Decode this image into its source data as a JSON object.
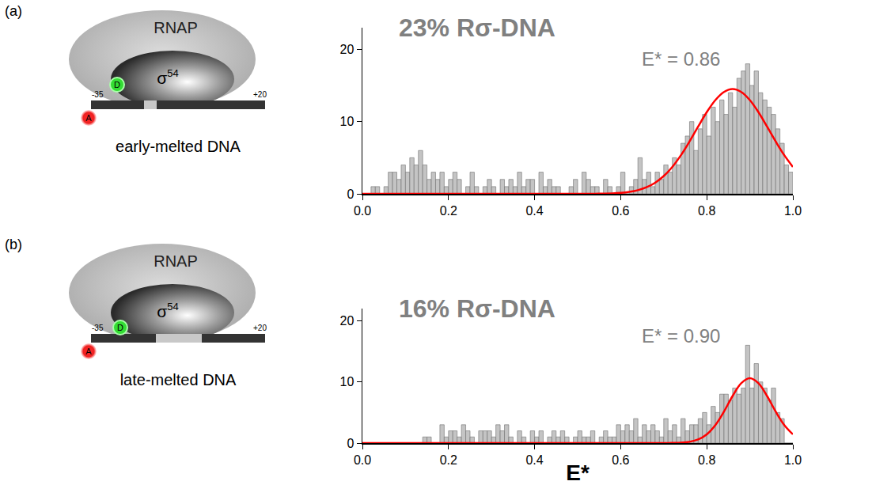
{
  "chart_data": [
    {
      "type": "histogram",
      "panel": "(a)",
      "title": "23% Rσ-DNA",
      "annotations": [
        "E* = 0.86"
      ],
      "bins": [
        0,
        0.01,
        0.02,
        0.03,
        0.04,
        0.05,
        0.06,
        0.07,
        0.08,
        0.09,
        0.1,
        0.11,
        0.12,
        0.13,
        0.14,
        0.15,
        0.16,
        0.17,
        0.18,
        0.19,
        0.2,
        0.21,
        0.22,
        0.23,
        0.24,
        0.25,
        0.26,
        0.27,
        0.28,
        0.29,
        0.3,
        0.31,
        0.32,
        0.33,
        0.34,
        0.35,
        0.36,
        0.37,
        0.38,
        0.39,
        0.4,
        0.41,
        0.42,
        0.43,
        0.44,
        0.45,
        0.46,
        0.47,
        0.48,
        0.49,
        0.5,
        0.51,
        0.52,
        0.53,
        0.54,
        0.55,
        0.56,
        0.57,
        0.58,
        0.59,
        0.6,
        0.61,
        0.62,
        0.63,
        0.64,
        0.65,
        0.66,
        0.67,
        0.68,
        0.69,
        0.7,
        0.71,
        0.72,
        0.73,
        0.74,
        0.75,
        0.76,
        0.77,
        0.78,
        0.79,
        0.8,
        0.81,
        0.82,
        0.83,
        0.84,
        0.85,
        0.86,
        0.87,
        0.88,
        0.89,
        0.9,
        0.91,
        0.92,
        0.93,
        0.94,
        0.95,
        0.96,
        0.97,
        0.98,
        0.99,
        1
      ],
      "values": [
        0,
        0,
        1,
        1,
        0,
        1,
        3,
        3,
        2,
        4,
        3,
        5,
        4,
        6,
        4,
        2,
        3,
        2,
        3,
        1,
        2,
        3,
        2,
        0,
        1,
        3,
        1,
        0,
        1,
        2,
        1,
        0,
        2,
        1,
        2,
        1,
        3,
        1,
        2,
        2,
        0,
        3,
        1,
        2,
        1,
        1,
        0,
        0,
        1,
        2,
        0,
        3,
        2,
        1,
        1,
        0,
        2,
        1,
        0,
        1,
        3,
        0,
        1,
        2,
        5,
        2,
        3,
        1,
        3,
        2,
        4,
        3,
        5,
        4,
        7,
        8,
        10,
        6,
        9,
        11,
        8,
        12,
        10,
        13,
        11,
        14,
        12,
        16,
        17,
        18,
        15,
        17,
        14,
        13,
        12,
        11,
        9,
        7,
        4,
        3
      ],
      "color": "#c4c4c4",
      "fit": {
        "type": "line",
        "color": "#ff0000",
        "x": [
          0,
          0.02,
          0.04,
          0.06,
          0.08,
          0.1,
          0.12,
          0.14,
          0.16,
          0.18,
          0.2,
          0.22,
          0.24,
          0.26,
          0.28,
          0.3,
          0.32,
          0.34,
          0.36,
          0.38,
          0.4,
          0.42,
          0.44,
          0.46,
          0.48,
          0.5,
          0.52,
          0.54,
          0.56,
          0.58,
          0.6,
          0.62,
          0.64,
          0.66,
          0.68,
          0.7,
          0.72,
          0.74,
          0.76,
          0.78,
          0.8,
          0.82,
          0.84,
          0.86,
          0.88,
          0.9,
          0.92,
          0.94,
          0.96,
          0.98,
          1
        ],
        "values": [
          0,
          0,
          0,
          0,
          0,
          0,
          0,
          0,
          0,
          0,
          0,
          0,
          0,
          0,
          0,
          0,
          0,
          0,
          0,
          0,
          0,
          0,
          0,
          0,
          0,
          0.0,
          0.01,
          0.01,
          0.03,
          0.06,
          0.13,
          0.27,
          0.51,
          0.91,
          1.54,
          2.46,
          3.73,
          5.35,
          7.26,
          9.32,
          11.31,
          12.98,
          14.1,
          14.5,
          14.1,
          12.98,
          11.31,
          9.32,
          7.26,
          5.35,
          3.73
        ]
      },
      "xlim": [
        0,
        1
      ],
      "xticks": [
        {
          "value": 0,
          "label": "0.0"
        },
        0.2,
        0.4,
        0.6,
        0.8,
        {
          "value": 1,
          "label": "1.0"
        }
      ],
      "ylim": [
        0,
        23
      ],
      "yticks": [
        0,
        10,
        20
      ],
      "grid": false
    },
    {
      "type": "histogram",
      "panel": "(b)",
      "title": "16% Rσ-DNA",
      "annotations": [
        "E* = 0.90"
      ],
      "bins": [
        0,
        0.01,
        0.02,
        0.03,
        0.04,
        0.05,
        0.06,
        0.07,
        0.08,
        0.09,
        0.1,
        0.11,
        0.12,
        0.13,
        0.14,
        0.15,
        0.16,
        0.17,
        0.18,
        0.19,
        0.2,
        0.21,
        0.22,
        0.23,
        0.24,
        0.25,
        0.26,
        0.27,
        0.28,
        0.29,
        0.3,
        0.31,
        0.32,
        0.33,
        0.34,
        0.35,
        0.36,
        0.37,
        0.38,
        0.39,
        0.4,
        0.41,
        0.42,
        0.43,
        0.44,
        0.45,
        0.46,
        0.47,
        0.48,
        0.49,
        0.5,
        0.51,
        0.52,
        0.53,
        0.54,
        0.55,
        0.56,
        0.57,
        0.58,
        0.59,
        0.6,
        0.61,
        0.62,
        0.63,
        0.64,
        0.65,
        0.66,
        0.67,
        0.68,
        0.69,
        0.7,
        0.71,
        0.72,
        0.73,
        0.74,
        0.75,
        0.76,
        0.77,
        0.78,
        0.79,
        0.8,
        0.81,
        0.82,
        0.83,
        0.84,
        0.85,
        0.86,
        0.87,
        0.88,
        0.89,
        0.9,
        0.91,
        0.92,
        0.93,
        0.94,
        0.95,
        0.96,
        0.97,
        0.98,
        0.99,
        1
      ],
      "values": [
        0,
        0,
        0,
        0,
        0,
        0,
        0,
        0,
        0,
        0,
        0,
        0,
        0,
        0,
        1,
        1,
        0,
        0,
        3,
        1,
        2,
        2,
        1,
        3,
        2,
        1,
        0,
        2,
        2,
        2,
        1,
        3,
        2,
        3,
        1,
        0,
        2,
        1,
        0,
        2,
        1,
        2,
        0,
        1,
        2,
        1,
        2,
        1,
        0,
        1,
        2,
        1,
        1,
        2,
        0,
        1,
        2,
        1,
        1,
        3,
        2,
        3,
        2,
        4,
        1,
        3,
        2,
        3,
        2,
        1,
        4,
        2,
        3,
        1,
        4,
        2,
        3,
        3,
        4,
        5,
        3,
        6,
        5,
        8,
        8,
        7,
        9,
        8,
        9,
        16,
        9,
        13,
        10,
        9,
        7,
        9,
        5,
        4,
        0,
        0
      ],
      "color": "#c4c4c4",
      "fit": {
        "type": "line",
        "color": "#ff0000",
        "x": [
          0,
          0.02,
          0.04,
          0.06,
          0.08,
          0.1,
          0.12,
          0.14,
          0.16,
          0.18,
          0.2,
          0.22,
          0.24,
          0.26,
          0.28,
          0.3,
          0.32,
          0.34,
          0.36,
          0.38,
          0.4,
          0.42,
          0.44,
          0.46,
          0.48,
          0.5,
          0.52,
          0.54,
          0.56,
          0.58,
          0.6,
          0.62,
          0.64,
          0.66,
          0.68,
          0.7,
          0.72,
          0.74,
          0.76,
          0.78,
          0.8,
          0.82,
          0.84,
          0.86,
          0.88,
          0.9,
          0.92,
          0.94,
          0.96,
          0.98,
          1
        ],
        "values": [
          0,
          0,
          0,
          0,
          0,
          0,
          0,
          0,
          0,
          0,
          0,
          0,
          0,
          0,
          0,
          0,
          0,
          0,
          0,
          0,
          0,
          0,
          0,
          0,
          0,
          0,
          0,
          0,
          0,
          0,
          0,
          0,
          0,
          0,
          0,
          0.0,
          0.02,
          0.06,
          0.21,
          0.59,
          1.43,
          2.95,
          5.16,
          7.7,
          9.79,
          10.6,
          9.79,
          7.7,
          5.16,
          2.95,
          1.43
        ]
      },
      "xlim": [
        0,
        1
      ],
      "xticks": [
        {
          "value": 0,
          "label": "0.0"
        },
        0.2,
        0.4,
        0.6,
        0.8,
        {
          "value": 1,
          "label": "1.0"
        }
      ],
      "xlabel": "E*",
      "ylim": [
        0,
        22
      ],
      "yticks": [
        0,
        10,
        20
      ],
      "grid": false
    }
  ],
  "diagrams": [
    {
      "panel": "(a)",
      "enzyme": "RNAP",
      "factor": {
        "symbol": "σ",
        "superscript": "54"
      },
      "donor": "D",
      "acceptor": "A",
      "start": "-35",
      "end": "+20",
      "caption": "early-melted DNA"
    },
    {
      "panel": "(b)",
      "enzyme": "RNAP",
      "factor": {
        "symbol": "σ",
        "superscript": "54"
      },
      "donor": "D",
      "acceptor": "A",
      "start": "-35",
      "end": "+20",
      "caption": "late-melted DNA"
    }
  ]
}
